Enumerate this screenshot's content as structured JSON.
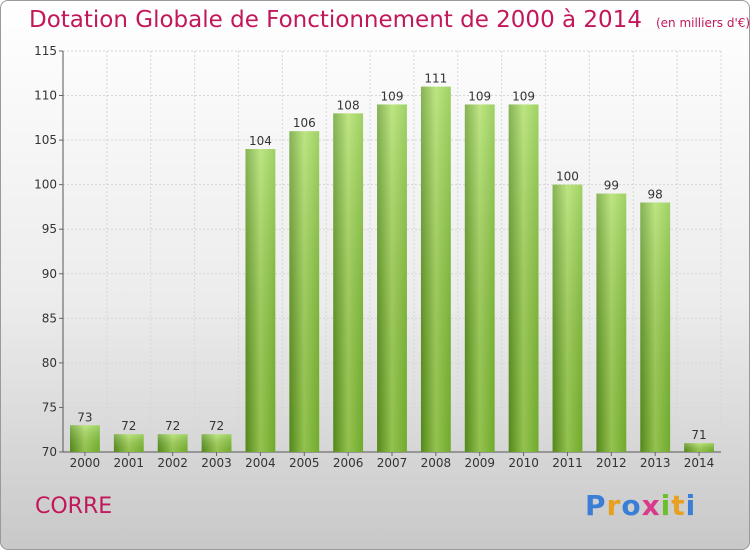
{
  "title": "Dotation Globale de Fonctionnement de 2000 à 2014",
  "units": "(en milliers d'€)",
  "place": "CORRE",
  "logo": {
    "text": "Proxiti",
    "letters": [
      "P",
      "r",
      "o",
      "x",
      "i",
      "t",
      "i"
    ],
    "colors": [
      "#3a7fd5",
      "#e8a020",
      "#3a7fd5",
      "#d93a8a",
      "#6cbf2a",
      "#e8a020",
      "#3a7fd5"
    ]
  },
  "colors": {
    "bar": "#7fc232",
    "bar_light": "#a8dc5a",
    "bar_dark": "#5e9a1e",
    "title": "#c2185b"
  },
  "chart_data": {
    "type": "bar",
    "title": "Dotation Globale de Fonctionnement de 2000 à 2014",
    "subtitle": "(en milliers d'€)",
    "categories": [
      "2000",
      "2001",
      "2002",
      "2003",
      "2004",
      "2005",
      "2006",
      "2007",
      "2008",
      "2009",
      "2010",
      "2011",
      "2012",
      "2013",
      "2014"
    ],
    "values": [
      73,
      72,
      72,
      72,
      104,
      106,
      108,
      109,
      111,
      109,
      109,
      100,
      99,
      98,
      71
    ],
    "ylim": [
      70,
      115
    ],
    "yticks": [
      70,
      75,
      80,
      85,
      90,
      95,
      100,
      105,
      110,
      115
    ],
    "grid": true,
    "legend": "none"
  }
}
